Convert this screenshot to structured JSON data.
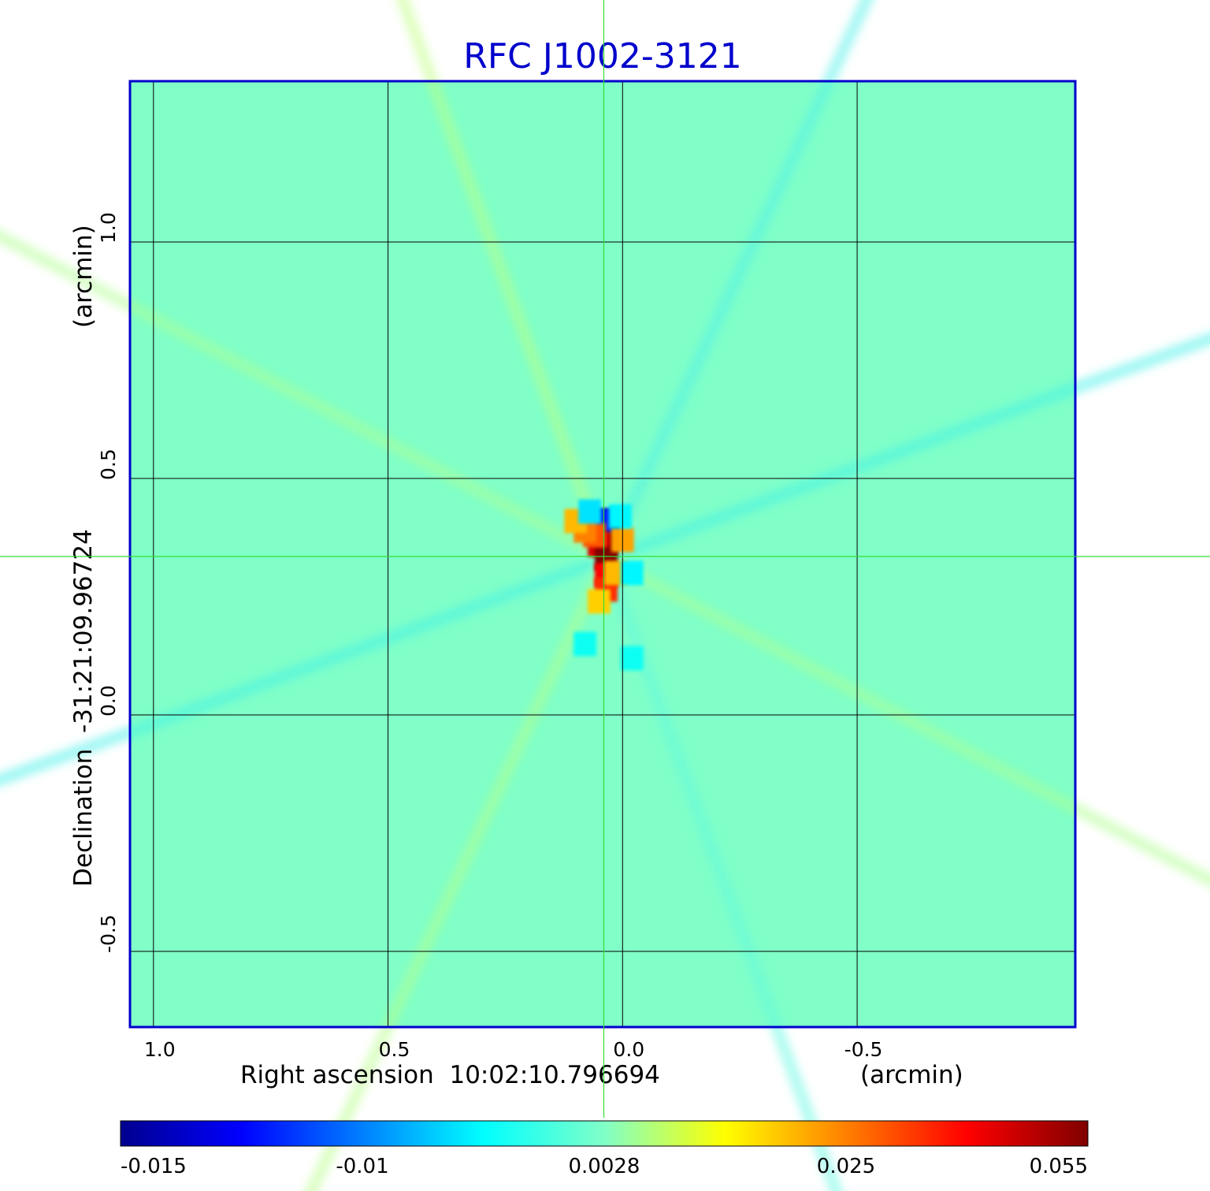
{
  "chart_data": {
    "type": "heatmap",
    "title": "RFC J1002-3121",
    "xlabel": "Right ascension  10:02:10.796694",
    "xunit": "(arcmin)",
    "ylabel": "Declination  -31:21:09.96724",
    "yunit": "(arcmin)",
    "x_ticks": [
      1.0,
      0.5,
      0.0,
      -0.5
    ],
    "x_tick_labels": [
      "1.0",
      "0.5",
      "0.0",
      "-0.5"
    ],
    "y_ticks": [
      1.0,
      0.5,
      0.0,
      -0.5
    ],
    "y_tick_labels": [
      "1.0",
      "0.5",
      "0.0",
      "-0.5"
    ],
    "xlim": [
      1.05,
      -0.965
    ],
    "ylim": [
      -0.66,
      1.34
    ],
    "grid": true,
    "crosshair": {
      "x": 0.04,
      "y": 0.335
    },
    "colorbar": {
      "ticks": [
        -0.015,
        -0.01,
        0.0028,
        0.025,
        0.055
      ],
      "tick_labels": [
        "-0.015",
        "-0.01",
        "0.0028",
        "0.025",
        "0.055"
      ],
      "colormap": "jet"
    },
    "background_level": 0.0028,
    "features": [
      {
        "x": 0.03,
        "y": 0.41,
        "value": -0.015
      },
      {
        "x": 0.045,
        "y": 0.41,
        "value": -0.012
      },
      {
        "x": 0.035,
        "y": 0.36,
        "value": 0.055
      },
      {
        "x": 0.05,
        "y": 0.36,
        "value": 0.045
      },
      {
        "x": 0.035,
        "y": 0.33,
        "value": 0.055
      },
      {
        "x": 0.035,
        "y": 0.295,
        "value": 0.04
      },
      {
        "x": 0.035,
        "y": 0.265,
        "value": 0.035
      },
      {
        "x": 0.06,
        "y": 0.38,
        "value": 0.03
      },
      {
        "x": 0.08,
        "y": 0.39,
        "value": 0.025
      },
      {
        "x": 0.1,
        "y": 0.41,
        "value": 0.02
      },
      {
        "x": 0.0,
        "y": 0.37,
        "value": 0.022
      },
      {
        "x": 0.015,
        "y": 0.3,
        "value": 0.02
      },
      {
        "x": 0.05,
        "y": 0.24,
        "value": 0.018
      },
      {
        "x": 0.07,
        "y": 0.43,
        "value": -0.005
      },
      {
        "x": 0.005,
        "y": 0.42,
        "value": -0.004
      },
      {
        "x": -0.02,
        "y": 0.3,
        "value": -0.004
      },
      {
        "x": 0.08,
        "y": 0.15,
        "value": -0.003
      },
      {
        "x": -0.02,
        "y": 0.12,
        "value": -0.003
      }
    ],
    "colors": {
      "title": "#0000cc",
      "frame": "#0000cc",
      "crosshair": "#33dd33",
      "grid": "#000000"
    }
  }
}
